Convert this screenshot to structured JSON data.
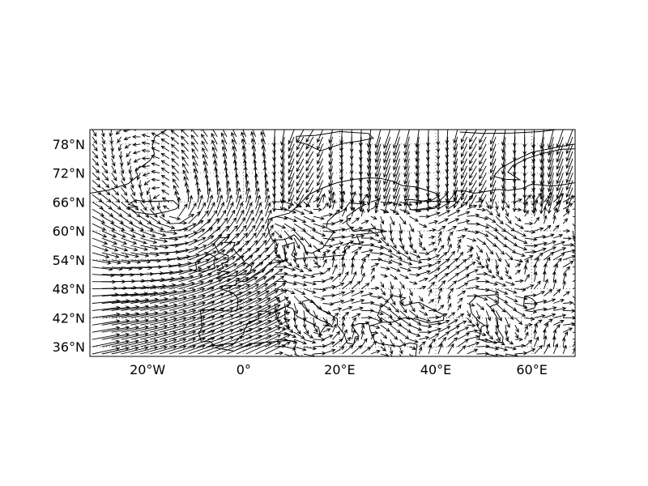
{
  "map": {
    "projection": "equirectangular",
    "lon_range": [
      -32,
      69
    ],
    "lat_range": [
      34,
      81
    ],
    "grid": "dotted",
    "colors": {
      "frame": "#000000",
      "coastline": "#000000",
      "arrows": "#000000",
      "gridlines": "#000000",
      "background": "#ffffff"
    },
    "lon_ticks": [
      {
        "value": -20,
        "label": "20°W"
      },
      {
        "value": 0,
        "label": "0°"
      },
      {
        "value": 20,
        "label": "20°E"
      },
      {
        "value": 40,
        "label": "40°E"
      },
      {
        "value": 60,
        "label": "60°E"
      }
    ],
    "lat_ticks": [
      {
        "value": 78,
        "label": "78°N"
      },
      {
        "value": 72,
        "label": "72°N"
      },
      {
        "value": 66,
        "label": "66°N"
      },
      {
        "value": 60,
        "label": "60°N"
      },
      {
        "value": 54,
        "label": "54°N"
      },
      {
        "value": 48,
        "label": "48°N"
      },
      {
        "value": 42,
        "label": "42°N"
      },
      {
        "value": 36,
        "label": "36°N"
      }
    ],
    "layers": [
      "coastlines",
      "wind-vectors"
    ]
  }
}
